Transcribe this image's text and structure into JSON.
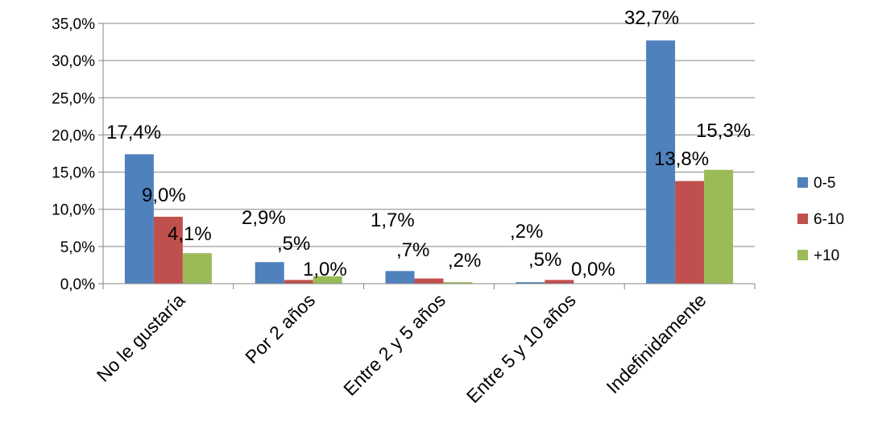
{
  "chart_data": {
    "type": "bar",
    "categories": [
      "No le gustaría",
      "Por 2 años",
      "Entre 2 y 5 años",
      "Entre 5 y 10 años",
      "Indefinidamente"
    ],
    "series": [
      {
        "name": "0-5",
        "color": "#4F81BD",
        "values": [
          17.4,
          2.9,
          1.7,
          0.2,
          32.7
        ],
        "labels": [
          "17,4%",
          "2,9%",
          "1,7%",
          ",2%",
          "32,7%"
        ]
      },
      {
        "name": "6-10",
        "color": "#C0504D",
        "values": [
          9.0,
          0.5,
          0.7,
          0.5,
          13.8
        ],
        "labels": [
          "9,0%",
          ",5%",
          ",7%",
          ",5%",
          "13,8%"
        ]
      },
      {
        "name": "+10",
        "color": "#9BBB59",
        "values": [
          4.1,
          1.0,
          0.2,
          0.0,
          15.3
        ],
        "labels": [
          "4,1%",
          "1,0%",
          ",2%",
          "0,0%",
          "15,3%"
        ]
      }
    ],
    "ylim": [
      0,
      35
    ],
    "yticks": [
      0,
      5,
      10,
      15,
      20,
      25,
      30,
      35
    ],
    "ytick_labels": [
      "0,0%",
      "5,0%",
      "10,0%",
      "15,0%",
      "20,0%",
      "25,0%",
      "30,0%",
      "35,0%"
    ],
    "grid": true,
    "legend": "right"
  }
}
